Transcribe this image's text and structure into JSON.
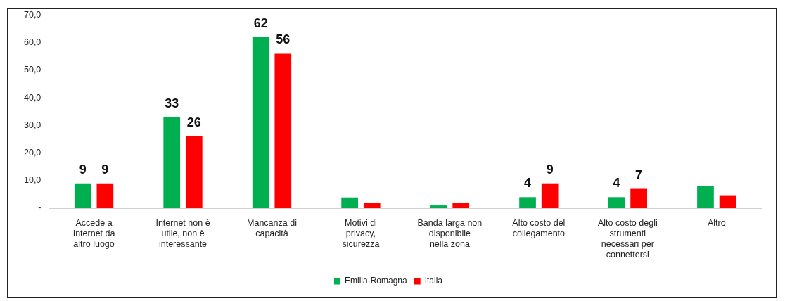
{
  "chart_data": {
    "type": "bar",
    "categories": [
      "Accede a Internet da altro luogo",
      "Internet non è utile, non è interessante",
      "Mancanza di capacità",
      "Motivi di privacy, sicurezza",
      "Banda larga non disponibile nella zona",
      "Alto costo del collegamento",
      "Alto costo degli strumenti necessari per connettersi",
      "Altro"
    ],
    "series": [
      {
        "name": "Emilia-Romagna",
        "color": "#00b050",
        "values": [
          9,
          33,
          62,
          3.9,
          1.0,
          4,
          4,
          8.0
        ],
        "value_labels": [
          "9",
          "33",
          "62",
          null,
          null,
          "4",
          "4",
          null
        ]
      },
      {
        "name": "Italia",
        "color": "#ff0000",
        "values": [
          9,
          26,
          56,
          2.0,
          1.9,
          9,
          7,
          4.7
        ],
        "value_labels": [
          "9",
          "26",
          "56",
          null,
          null,
          "9",
          "7",
          null
        ]
      }
    ],
    "ylim": [
      0,
      70
    ],
    "yticks": [
      {
        "value": 0,
        "label": "-"
      },
      {
        "value": 10,
        "label": "10,0"
      },
      {
        "value": 20,
        "label": "20,0"
      },
      {
        "value": 30,
        "label": "30,0"
      },
      {
        "value": 40,
        "label": "40,0"
      },
      {
        "value": 50,
        "label": "50,0"
      },
      {
        "value": 60,
        "label": "60,0"
      },
      {
        "value": 70,
        "label": "70,0"
      }
    ],
    "grid": false,
    "legend": "bottom"
  }
}
